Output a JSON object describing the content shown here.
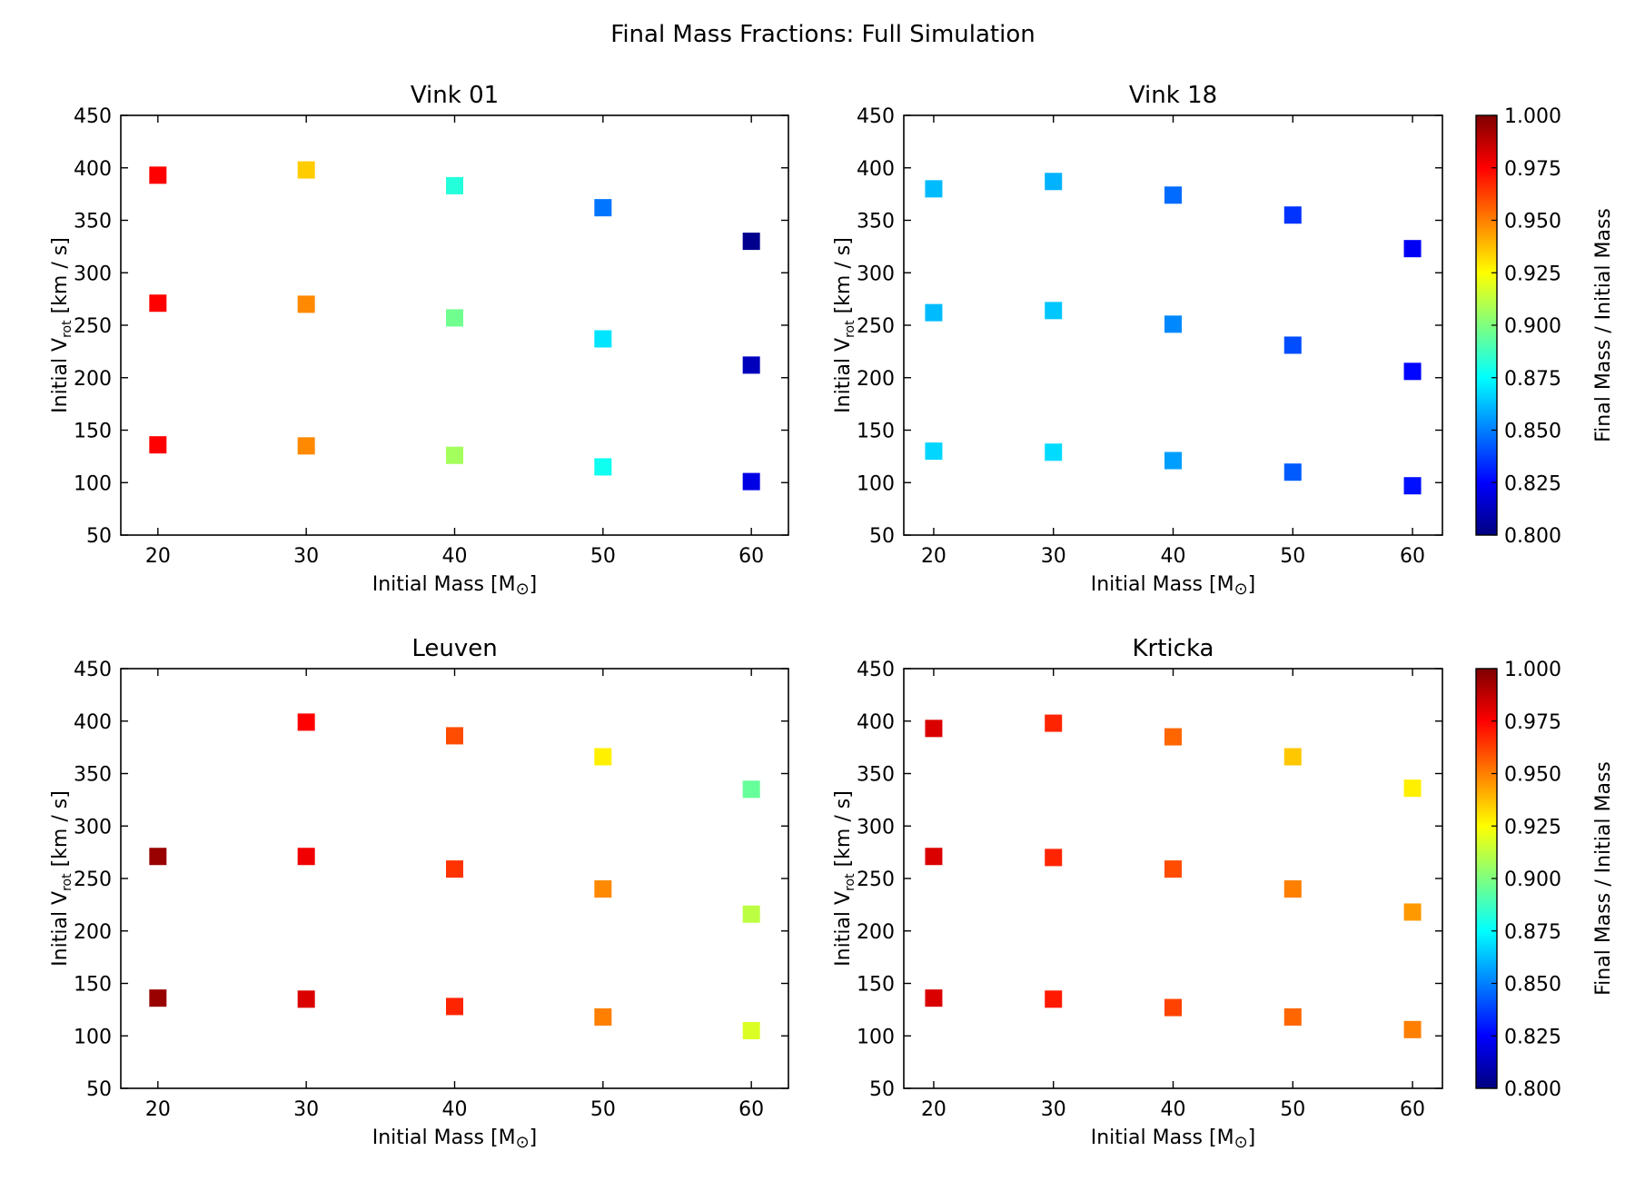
{
  "title": "Final Mass Fractions: Full Simulation",
  "colormap": {
    "name": "jet",
    "stops": [
      "#00007f",
      "#0000ff",
      "#007fff",
      "#00ffff",
      "#7fff7f",
      "#ffff00",
      "#ff7f00",
      "#ff0000",
      "#7f0000"
    ]
  },
  "colorbar": {
    "label": "Final Mass / Initial Mass",
    "range": [
      0.8,
      1.0
    ],
    "ticks": [
      "0.800",
      "0.825",
      "0.850",
      "0.875",
      "0.900",
      "0.925",
      "0.950",
      "0.975",
      "1.000"
    ]
  },
  "axes_common": {
    "xlabel_main": "Initial Mass [M",
    "xlabel_sub": "⊙",
    "xlabel_end": "]",
    "ylabel_main": "Initial V",
    "ylabel_sub": "rot",
    "ylabel_end": " [km / s]",
    "xticks": [
      "20",
      "30",
      "40",
      "50",
      "60"
    ],
    "yticks": [
      "50",
      "100",
      "150",
      "200",
      "250",
      "300",
      "350",
      "400",
      "450"
    ]
  },
  "chart_data": [
    {
      "type": "scatter",
      "title": "Vink 01",
      "xlabel": "Initial Mass [M⊙]",
      "ylabel": "Initial V_rot [km / s]",
      "xlim": [
        17.5,
        62.5
      ],
      "ylim": [
        50,
        450
      ],
      "points": [
        {
          "x": 20,
          "y": 393,
          "c": 0.975
        },
        {
          "x": 20,
          "y": 271,
          "c": 0.975
        },
        {
          "x": 20,
          "y": 136,
          "c": 0.975
        },
        {
          "x": 30,
          "y": 398,
          "c": 0.935
        },
        {
          "x": 30,
          "y": 270,
          "c": 0.948
        },
        {
          "x": 30,
          "y": 135,
          "c": 0.948
        },
        {
          "x": 40,
          "y": 383,
          "c": 0.882
        },
        {
          "x": 40,
          "y": 257,
          "c": 0.897
        },
        {
          "x": 40,
          "y": 126,
          "c": 0.907
        },
        {
          "x": 50,
          "y": 362,
          "c": 0.848
        },
        {
          "x": 50,
          "y": 237,
          "c": 0.87
        },
        {
          "x": 50,
          "y": 115,
          "c": 0.878
        },
        {
          "x": 60,
          "y": 330,
          "c": 0.803
        },
        {
          "x": 60,
          "y": 212,
          "c": 0.812
        },
        {
          "x": 60,
          "y": 101,
          "c": 0.82
        }
      ]
    },
    {
      "type": "scatter",
      "title": "Vink 18",
      "xlabel": "Initial Mass [M⊙]",
      "ylabel": "Initial V_rot [km / s]",
      "xlim": [
        17.5,
        62.5
      ],
      "ylim": [
        50,
        450
      ],
      "points": [
        {
          "x": 20,
          "y": 380,
          "c": 0.862
        },
        {
          "x": 20,
          "y": 262,
          "c": 0.862
        },
        {
          "x": 20,
          "y": 130,
          "c": 0.867
        },
        {
          "x": 30,
          "y": 387,
          "c": 0.86
        },
        {
          "x": 30,
          "y": 264,
          "c": 0.864
        },
        {
          "x": 30,
          "y": 129,
          "c": 0.868
        },
        {
          "x": 40,
          "y": 374,
          "c": 0.846
        },
        {
          "x": 40,
          "y": 251,
          "c": 0.852
        },
        {
          "x": 40,
          "y": 121,
          "c": 0.856
        },
        {
          "x": 50,
          "y": 355,
          "c": 0.835
        },
        {
          "x": 50,
          "y": 231,
          "c": 0.84
        },
        {
          "x": 50,
          "y": 110,
          "c": 0.843
        },
        {
          "x": 60,
          "y": 323,
          "c": 0.823
        },
        {
          "x": 60,
          "y": 206,
          "c": 0.826
        },
        {
          "x": 60,
          "y": 97,
          "c": 0.828
        }
      ]
    },
    {
      "type": "scatter",
      "title": "Leuven",
      "xlabel": "Initial Mass [M⊙]",
      "ylabel": "Initial V_rot [km / s]",
      "xlim": [
        17.5,
        62.5
      ],
      "ylim": [
        50,
        450
      ],
      "points": [
        {
          "x": 20,
          "y": 271,
          "c": 0.995
        },
        {
          "x": 20,
          "y": 136,
          "c": 0.995
        },
        {
          "x": 30,
          "y": 399,
          "c": 0.975
        },
        {
          "x": 30,
          "y": 271,
          "c": 0.978
        },
        {
          "x": 30,
          "y": 135,
          "c": 0.982
        },
        {
          "x": 40,
          "y": 386,
          "c": 0.96
        },
        {
          "x": 40,
          "y": 259,
          "c": 0.965
        },
        {
          "x": 40,
          "y": 128,
          "c": 0.968
        },
        {
          "x": 50,
          "y": 366,
          "c": 0.928
        },
        {
          "x": 50,
          "y": 240,
          "c": 0.948
        },
        {
          "x": 50,
          "y": 118,
          "c": 0.95
        },
        {
          "x": 60,
          "y": 335,
          "c": 0.895
        },
        {
          "x": 60,
          "y": 216,
          "c": 0.912
        },
        {
          "x": 60,
          "y": 105,
          "c": 0.918
        }
      ]
    },
    {
      "type": "scatter",
      "title": "Krticka",
      "xlabel": "Initial Mass [M⊙]",
      "ylabel": "Initial V_rot [km / s]",
      "xlim": [
        17.5,
        62.5
      ],
      "ylim": [
        50,
        450
      ],
      "points": [
        {
          "x": 20,
          "y": 393,
          "c": 0.982
        },
        {
          "x": 20,
          "y": 271,
          "c": 0.982
        },
        {
          "x": 20,
          "y": 136,
          "c": 0.982
        },
        {
          "x": 30,
          "y": 398,
          "c": 0.968
        },
        {
          "x": 30,
          "y": 270,
          "c": 0.968
        },
        {
          "x": 30,
          "y": 135,
          "c": 0.97
        },
        {
          "x": 40,
          "y": 385,
          "c": 0.955
        },
        {
          "x": 40,
          "y": 259,
          "c": 0.96
        },
        {
          "x": 40,
          "y": 127,
          "c": 0.962
        },
        {
          "x": 50,
          "y": 366,
          "c": 0.936
        },
        {
          "x": 50,
          "y": 240,
          "c": 0.95
        },
        {
          "x": 50,
          "y": 118,
          "c": 0.955
        },
        {
          "x": 60,
          "y": 336,
          "c": 0.928
        },
        {
          "x": 60,
          "y": 218,
          "c": 0.945
        },
        {
          "x": 60,
          "y": 106,
          "c": 0.95
        }
      ]
    }
  ]
}
